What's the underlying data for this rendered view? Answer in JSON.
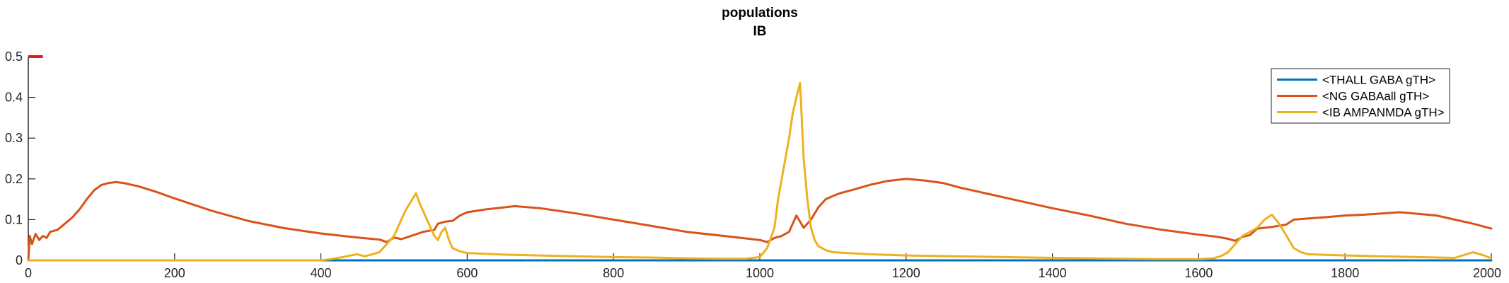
{
  "chart_data": {
    "type": "line",
    "title": [
      "populations",
      "IB"
    ],
    "xlabel": "",
    "ylabel": "",
    "xlim": [
      0,
      2000
    ],
    "ylim": [
      0,
      0.5
    ],
    "xticks": [
      0,
      200,
      400,
      600,
      800,
      1000,
      1200,
      1400,
      1600,
      1800,
      2000
    ],
    "xtick_labels": [
      "0",
      "200",
      "400",
      "600",
      "800",
      "1000",
      "1200",
      "1400",
      "1600",
      "1800",
      "2000"
    ],
    "yticks": [
      0,
      0.1,
      0.2,
      0.3,
      0.4,
      0.5
    ],
    "ytick_labels": [
      "0",
      "0.1",
      "0.2",
      "0.3",
      "0.4",
      "0.5"
    ],
    "grid": false,
    "legend_position": "top-right",
    "series": [
      {
        "name": "<THALL GABA gTH>",
        "color": "#0072BD",
        "x": [
          0,
          2000
        ],
        "y": [
          0,
          0
        ]
      },
      {
        "name": "<NG GABAall gTH>",
        "color": "#D95319",
        "x": [
          0,
          2,
          5,
          10,
          15,
          20,
          25,
          30,
          40,
          50,
          60,
          70,
          80,
          90,
          100,
          110,
          120,
          130,
          150,
          175,
          200,
          250,
          300,
          350,
          400,
          450,
          480,
          490,
          500,
          510,
          520,
          540,
          555,
          560,
          570,
          580,
          590,
          600,
          625,
          650,
          665,
          700,
          750,
          800,
          850,
          900,
          950,
          1000,
          1010,
          1020,
          1030,
          1040,
          1045,
          1050,
          1060,
          1070,
          1080,
          1090,
          1100,
          1110,
          1125,
          1150,
          1175,
          1190,
          1200,
          1225,
          1250,
          1275,
          1300,
          1350,
          1400,
          1450,
          1500,
          1550,
          1600,
          1625,
          1640,
          1650,
          1660,
          1670,
          1680,
          1700,
          1720,
          1730,
          1750,
          1775,
          1800,
          1825,
          1850,
          1875,
          1900,
          1925,
          1950,
          1975,
          2000
        ],
        "y": [
          0,
          0.06,
          0.04,
          0.065,
          0.05,
          0.06,
          0.055,
          0.07,
          0.075,
          0.09,
          0.105,
          0.125,
          0.15,
          0.172,
          0.185,
          0.19,
          0.192,
          0.19,
          0.182,
          0.168,
          0.152,
          0.122,
          0.097,
          0.079,
          0.066,
          0.056,
          0.051,
          0.045,
          0.056,
          0.052,
          0.058,
          0.07,
          0.075,
          0.09,
          0.095,
          0.097,
          0.11,
          0.118,
          0.125,
          0.13,
          0.133,
          0.128,
          0.115,
          0.1,
          0.085,
          0.07,
          0.06,
          0.05,
          0.045,
          0.055,
          0.06,
          0.07,
          0.09,
          0.11,
          0.08,
          0.1,
          0.13,
          0.15,
          0.158,
          0.165,
          0.172,
          0.185,
          0.195,
          0.198,
          0.2,
          0.196,
          0.19,
          0.178,
          0.168,
          0.148,
          0.128,
          0.11,
          0.09,
          0.075,
          0.063,
          0.058,
          0.053,
          0.048,
          0.058,
          0.062,
          0.078,
          0.082,
          0.088,
          0.1,
          0.103,
          0.106,
          0.11,
          0.112,
          0.115,
          0.118,
          0.114,
          0.11,
          0.1,
          0.09,
          0.078
        ]
      },
      {
        "name": "<IB AMPANMDA gTH>",
        "color": "#EDB120",
        "x": [
          0,
          50,
          100,
          200,
          300,
          400,
          410,
          420,
          430,
          440,
          450,
          460,
          470,
          480,
          490,
          500,
          505,
          510,
          515,
          520,
          525,
          530,
          535,
          540,
          545,
          550,
          555,
          560,
          565,
          570,
          575,
          580,
          590,
          600,
          650,
          700,
          750,
          800,
          850,
          900,
          950,
          980,
          1000,
          1010,
          1020,
          1025,
          1030,
          1035,
          1040,
          1045,
          1050,
          1055,
          1060,
          1065,
          1070,
          1075,
          1080,
          1090,
          1100,
          1150,
          1200,
          1300,
          1400,
          1500,
          1550,
          1600,
          1620,
          1630,
          1640,
          1650,
          1660,
          1670,
          1680,
          1690,
          1700,
          1710,
          1720,
          1730,
          1740,
          1750,
          1800,
          1850,
          1900,
          1950,
          1975,
          1990,
          2000
        ],
        "y": [
          0,
          0,
          0,
          0,
          0,
          0,
          0.002,
          0.005,
          0.008,
          0.012,
          0.015,
          0.01,
          0.015,
          0.02,
          0.04,
          0.06,
          0.08,
          0.1,
          0.12,
          0.135,
          0.15,
          0.165,
          0.14,
          0.12,
          0.1,
          0.08,
          0.06,
          0.05,
          0.07,
          0.08,
          0.05,
          0.03,
          0.022,
          0.018,
          0.014,
          0.012,
          0.01,
          0.008,
          0.007,
          0.005,
          0.004,
          0.004,
          0.008,
          0.03,
          0.08,
          0.15,
          0.2,
          0.25,
          0.3,
          0.36,
          0.4,
          0.435,
          0.25,
          0.15,
          0.08,
          0.05,
          0.035,
          0.025,
          0.02,
          0.015,
          0.012,
          0.009,
          0.006,
          0.004,
          0.003,
          0.003,
          0.005,
          0.01,
          0.02,
          0.04,
          0.06,
          0.07,
          0.08,
          0.1,
          0.112,
          0.09,
          0.06,
          0.03,
          0.02,
          0.015,
          0.012,
          0.01,
          0.008,
          0.006,
          0.02,
          0.012,
          0.005
        ]
      }
    ],
    "annotations": [
      {
        "type": "segment",
        "color": "#E41A1C",
        "x": [
          0,
          20
        ],
        "y": [
          0.5,
          0.5
        ]
      }
    ]
  }
}
